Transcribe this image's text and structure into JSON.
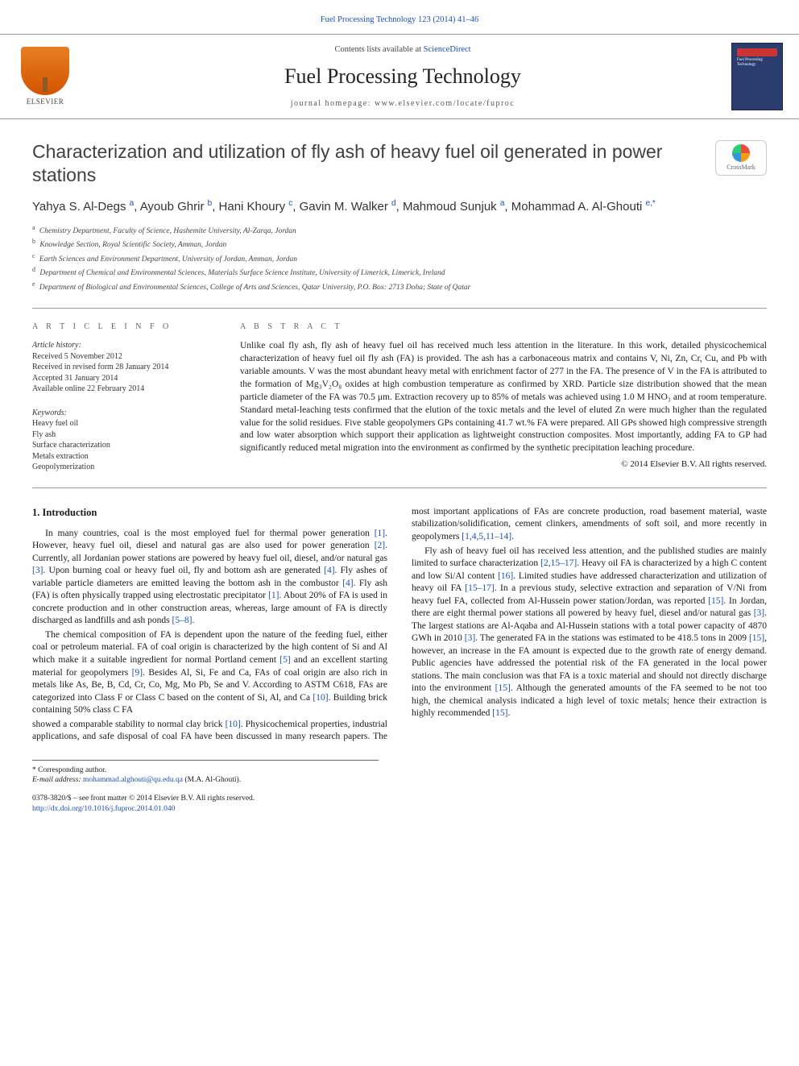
{
  "top_link": "Fuel Processing Technology 123 (2014) 41–46",
  "header": {
    "contents_line_prefix": "Contents lists available at ",
    "contents_link": "ScienceDirect",
    "journal_name": "Fuel Processing Technology",
    "homepage_prefix": "journal homepage: ",
    "homepage": "www.elsevier.com/locate/fuproc",
    "publisher": "ELSEVIER",
    "cover_text": "Fuel Processing Technology"
  },
  "crossmark_label": "CrossMark",
  "title": "Characterization and utilization of fly ash of heavy fuel oil generated in power stations",
  "authors_html": "Yahya S. Al-Degs <sup>a</sup>, Ayoub Ghrir <sup>b</sup>, Hani Khoury <sup>c</sup>, Gavin M. Walker <sup>d</sup>, Mahmoud Sunjuk <sup>a</sup>, Mohammad A. Al-Ghouti <sup>e,*</sup>",
  "affiliations": [
    {
      "sup": "a",
      "text": "Chemistry Department, Faculty of Science, Hashemite University, Al-Zarqa, Jordan"
    },
    {
      "sup": "b",
      "text": "Knowledge Section, Royal Scientific Society, Amman, Jordan"
    },
    {
      "sup": "c",
      "text": "Earth Sciences and Environment Department, University of Jordan, Amman, Jordan"
    },
    {
      "sup": "d",
      "text": "Department of Chemical and Environmental Sciences, Materials Surface Science Institute, University of Limerick, Limerick, Ireland"
    },
    {
      "sup": "e",
      "text": "Department of Biological and Environmental Sciences, College of Arts and Sciences, Qatar University, P.O. Box: 2713 Doha; State of Qatar"
    }
  ],
  "info": {
    "label": "A R T I C L E   I N F O",
    "history_head": "Article history:",
    "history": [
      "Received 5 November 2012",
      "Received in revised form 28 January 2014",
      "Accepted 31 January 2014",
      "Available online 22 February 2014"
    ],
    "keywords_head": "Keywords:",
    "keywords": [
      "Heavy fuel oil",
      "Fly ash",
      "Surface characterization",
      "Metals extraction",
      "Geopolymerization"
    ]
  },
  "abstract": {
    "label": "A B S T R A C T",
    "text": "Unlike coal fly ash, fly ash of heavy fuel oil has received much less attention in the literature. In this work, detailed physicochemical characterization of heavy fuel oil fly ash (FA) is provided. The ash has a carbonaceous matrix and contains V, Ni, Zn, Cr, Cu, and Pb with variable amounts. V was the most abundant heavy metal with enrichment factor of 277 in the FA. The presence of V in the FA is attributed to the formation of Mg₃V₂O₈ oxides at high combustion temperature as confirmed by XRD. Particle size distribution showed that the mean particle diameter of the FA was 70.5 μm. Extraction recovery up to 85% of metals was achieved using 1.0 M HNO₃ and at room temperature. Standard metal-leaching tests confirmed that the elution of the toxic metals and the level of eluted Zn were much higher than the regulated value for the solid residues. Five stable geopolymers GPs containing 41.7 wt.% FA were prepared. All GPs showed high compressive strength and low water absorption which support their application as lightweight construction composites. Most importantly, adding FA to GP had significantly reduced metal migration into the environment as confirmed by the synthetic precipitation leaching procedure.",
    "copyright": "© 2014 Elsevier B.V. All rights reserved."
  },
  "body": {
    "heading": "1. Introduction",
    "p1": "In many countries, coal is the most employed fuel for thermal power generation <span class='ref'>[1]</span>. However, heavy fuel oil, diesel and natural gas are also used for power generation <span class='ref'>[2]</span>. Currently, all Jordanian power stations are powered by heavy fuel oil, diesel, and/or natural gas <span class='ref'>[3]</span>. Upon burning coal or heavy fuel oil, fly and bottom ash are generated <span class='ref'>[4]</span>. Fly ashes of variable particle diameters are emitted leaving the bottom ash in the combustor <span class='ref'>[4]</span>. Fly ash (FA) is often physically trapped using electrostatic precipitator <span class='ref'>[1]</span>. About 20% of FA is used in concrete production and in other construction areas, whereas, large amount of FA is directly discharged as landfills and ash ponds <span class='ref'>[5–8]</span>.",
    "p2": "The chemical composition of FA is dependent upon the nature of the feeding fuel, either coal or petroleum material. FA of coal origin is characterized by the high content of Si and Al which make it a suitable ingredient for normal Portland cement <span class='ref'>[5]</span> and an excellent starting material for geopolymers <span class='ref'>[9]</span>. Besides Al, Si, Fe and Ca, FAs of coal origin are also rich in metals like As, Be, B, Cd, Cr, Co, Mg, Mo Pb, Se and V. According to ASTM C618, FAs are categorized into Class F or Class C based on the content of Si, Al, and Ca <span class='ref'>[10]</span>. Building brick containing 50% class C FA",
    "p3": "showed a comparable stability to normal clay brick <span class='ref'>[10]</span>. Physicochemical properties, industrial applications, and safe disposal of coal FA have been discussed in many research papers. The most important applications of FAs are concrete production, road basement material, waste stabilization/solidification, cement clinkers, amendments of soft soil, and more recently in geopolymers <span class='ref'>[1,4,5,11–14]</span>.",
    "p4": "Fly ash of heavy fuel oil has received less attention, and the published studies are mainly limited to surface characterization <span class='ref'>[2,15–17]</span>. Heavy oil FA is characterized by a high C content and low Si/Al content <span class='ref'>[16]</span>. Limited studies have addressed characterization and utilization of heavy oil FA <span class='ref'>[15–17]</span>. In a previous study, selective extraction and separation of V/Ni from heavy fuel FA, collected from Al-Hussein power station/Jordan, was reported <span class='ref'>[15]</span>. In Jordan, there are eight thermal power stations all powered by heavy fuel, diesel and/or natural gas <span class='ref'>[3]</span>. The largest stations are Al-Aqaba and Al-Hussein stations with a total power capacity of 4870 GWh in 2010 <span class='ref'>[3]</span>. The generated FA in the stations was estimated to be 418.5 tons in 2009 <span class='ref'>[15]</span>, however, an increase in the FA amount is expected due to the growth rate of energy demand. Public agencies have addressed the potential risk of the FA generated in the local power stations. The main conclusion was that FA is a toxic material and should not directly discharge into the environment <span class='ref'>[15]</span>. Although the generated amounts of the FA seemed to be not too high, the chemical analysis indicated a high level of toxic metals; hence their extraction is highly recommended <span class='ref'>[15]</span>."
  },
  "footer": {
    "corresponding": "* Corresponding author.",
    "email_label": "E-mail address: ",
    "email": "mohammad.alghouti@qu.edu.qa",
    "email_tail": " (M.A. Al-Ghouti).",
    "issn_line": "0378-3820/$ – see front matter © 2014 Elsevier B.V. All rights reserved.",
    "doi": "http://dx.doi.org/10.1016/j.fuproc.2014.01.040"
  },
  "colors": {
    "link": "#1a4fb8",
    "rule": "#999999",
    "text": "#1a1a1a",
    "elsevier_orange": "#e67e22",
    "cover_bg": "#2a3d6e"
  }
}
